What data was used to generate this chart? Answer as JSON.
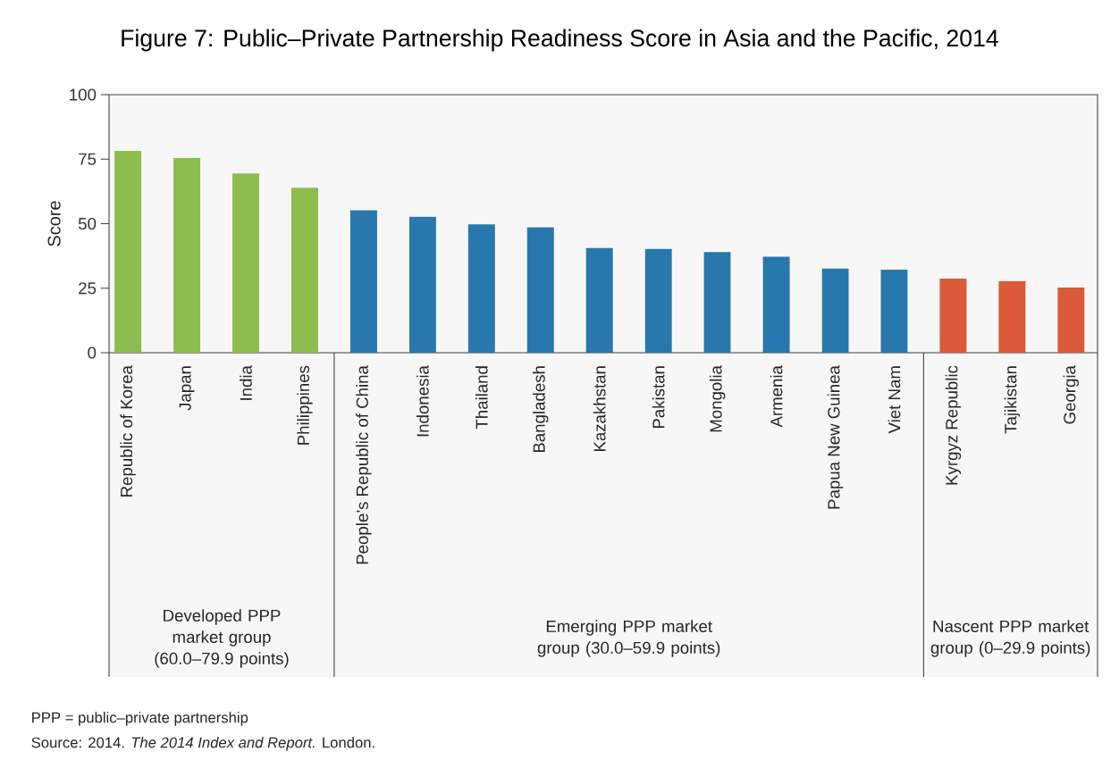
{
  "chart_data": {
    "type": "bar",
    "title": "Figure 7: Public–Private Partnership Readiness Score in Asia and the Pacific, 2014",
    "ylabel": "Score",
    "categories": [
      "Republic of Korea",
      "Japan",
      "India",
      "Philippines",
      "People’s Republic of China",
      "Indonesia",
      "Thailand",
      "Bangladesh",
      "Kazakhstan",
      "Pakistan",
      "Mongolia",
      "Armenia",
      "Papua New Guinea",
      "Viet Nam",
      "Kyrgyz Republic",
      "Tajikistan",
      "Georgia"
    ],
    "values": [
      78.2,
      75.4,
      69.5,
      63.9,
      55.2,
      52.7,
      49.7,
      48.6,
      40.6,
      40.2,
      39.0,
      37.2,
      32.6,
      32.2,
      28.7,
      27.8,
      25.3
    ],
    "colors": [
      "#8cbd4e",
      "#8cbd4e",
      "#8cbd4e",
      "#8cbd4e",
      "#2878ae",
      "#2878ae",
      "#2878ae",
      "#2878ae",
      "#2878ae",
      "#2878ae",
      "#2878ae",
      "#2878ae",
      "#2878ae",
      "#2878ae",
      "#db5a3a",
      "#db5a3a",
      "#db5a3a"
    ],
    "ylim": [
      0,
      100
    ],
    "yticks": [
      0,
      25,
      50,
      75,
      100
    ],
    "annotations": [
      "Developed PPP market group (60.0–79.9 points)",
      "Emerging PPP market group (30.0–59.9 points)",
      "Nascent PPP market group (0–29.9 points)",
      "PPP = public–private partnership",
      "Source: 2014. *The 2014 Index and Report.* London."
    ]
  }
}
